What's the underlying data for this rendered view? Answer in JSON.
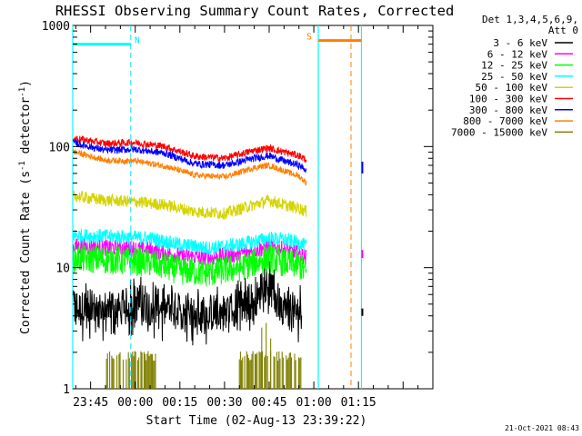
{
  "chart_data": {
    "type": "line",
    "title": "RHESSI Observing Summary Count Rates, Corrected",
    "xlabel": "Start Time (02-Aug-13 23:39:22)",
    "ylabel_main": "Corrected Count Rate (s",
    "ylabel_sup1": "-1",
    "ylabel_mid": " detector",
    "ylabel_sup2": "-1",
    "ylabel_end": ")",
    "y_scale": "log",
    "ylim": [
      1,
      1000
    ],
    "x_range_minutes": [
      -21,
      100
    ],
    "x_ticks": [
      {
        "label": "23:45",
        "minutes": -15
      },
      {
        "label": "00:00",
        "minutes": 0
      },
      {
        "label": "00:15",
        "minutes": 15
      },
      {
        "label": "00:30",
        "minutes": 30
      },
      {
        "label": "00:45",
        "minutes": 45
      },
      {
        "label": "01:00",
        "minutes": 60
      },
      {
        "label": "01:15",
        "minutes": 75
      }
    ],
    "y_ticks": [
      {
        "label": "1",
        "value": 1
      },
      {
        "label": "10",
        "value": 10
      },
      {
        "label": "100",
        "value": 100
      },
      {
        "label": "1000",
        "value": 1000
      }
    ],
    "legend_header": [
      "Det 1,3,4,5,6,9,",
      "Att 0"
    ],
    "legend_position": "right",
    "series": [
      {
        "name": "3 - 6 keV",
        "color": "#000000",
        "knots": [
          [
            -21,
            4.5
          ],
          [
            -5,
            4.5
          ],
          [
            0,
            5.2
          ],
          [
            10,
            4.5
          ],
          [
            20,
            4.2
          ],
          [
            30,
            4.3
          ],
          [
            40,
            5.5
          ],
          [
            44,
            7.5
          ],
          [
            48,
            5.2
          ],
          [
            52,
            4.3
          ],
          [
            56,
            4.5
          ]
        ],
        "noise": 0.16
      },
      {
        "name": "6 - 12 keV",
        "color": "#ff00ff",
        "knots": [
          [
            -21,
            15
          ],
          [
            -5,
            14.5
          ],
          [
            5,
            14
          ],
          [
            15,
            12.5
          ],
          [
            25,
            12
          ],
          [
            35,
            13
          ],
          [
            45,
            15
          ],
          [
            50,
            14
          ],
          [
            55,
            13
          ],
          [
            57.5,
            12
          ]
        ],
        "noise": 0.07
      },
      {
        "name": "12 - 25 keV",
        "color": "#00ff00",
        "knots": [
          [
            -21,
            12
          ],
          [
            -5,
            11.5
          ],
          [
            5,
            11
          ],
          [
            15,
            9.5
          ],
          [
            25,
            9
          ],
          [
            35,
            10
          ],
          [
            45,
            12
          ],
          [
            50,
            11
          ],
          [
            55,
            10.5
          ],
          [
            57.5,
            9
          ]
        ],
        "noise": 0.12
      },
      {
        "name": "25 - 50 keV",
        "color": "#00ffff",
        "knots": [
          [
            -21,
            18.5
          ],
          [
            -5,
            18
          ],
          [
            5,
            17.5
          ],
          [
            15,
            15.5
          ],
          [
            25,
            14.5
          ],
          [
            35,
            15.5
          ],
          [
            45,
            17.5
          ],
          [
            50,
            17
          ],
          [
            55,
            16
          ],
          [
            57.5,
            15
          ]
        ],
        "noise": 0.06
      },
      {
        "name": "50 - 100 keV",
        "color": "#d4d400",
        "knots": [
          [
            -21,
            39
          ],
          [
            -10,
            36
          ],
          [
            0,
            35
          ],
          [
            10,
            33
          ],
          [
            20,
            29
          ],
          [
            30,
            28
          ],
          [
            40,
            33
          ],
          [
            45,
            36
          ],
          [
            50,
            33
          ],
          [
            55,
            31
          ],
          [
            57.5,
            29
          ]
        ],
        "noise": 0.05
      },
      {
        "name": "100 - 300 keV",
        "color": "#ff0000",
        "knots": [
          [
            -21,
            118
          ],
          [
            -10,
            106
          ],
          [
            0,
            108
          ],
          [
            10,
            100
          ],
          [
            20,
            83
          ],
          [
            30,
            80
          ],
          [
            40,
            93
          ],
          [
            45,
            97
          ],
          [
            50,
            90
          ],
          [
            55,
            84
          ],
          [
            57.5,
            78
          ]
        ],
        "noise": 0.03
      },
      {
        "name": "300 - 800 keV",
        "color": "#0000ff",
        "knots": [
          [
            -21,
            108
          ],
          [
            -10,
            93
          ],
          [
            0,
            95
          ],
          [
            10,
            88
          ],
          [
            20,
            72
          ],
          [
            30,
            70
          ],
          [
            40,
            80
          ],
          [
            45,
            84
          ],
          [
            50,
            76
          ],
          [
            55,
            70
          ],
          [
            57.5,
            64
          ]
        ],
        "noise": 0.03
      },
      {
        "name": "800 - 7000 keV",
        "color": "#ff8000",
        "knots": [
          [
            -21,
            91
          ],
          [
            -10,
            77
          ],
          [
            0,
            76
          ],
          [
            10,
            69
          ],
          [
            20,
            58
          ],
          [
            30,
            56
          ],
          [
            40,
            67
          ],
          [
            45,
            70
          ],
          [
            50,
            63
          ],
          [
            55,
            57
          ],
          [
            57.5,
            50
          ]
        ],
        "noise": 0.025
      },
      {
        "name": "7000 - 15000 keV",
        "color": "#808000",
        "knots": [],
        "noise": 0
      }
    ],
    "markers": [
      {
        "label": "N",
        "color": "#00e5ff",
        "bar_from": -21,
        "bar_to": -1.5,
        "line_at": -1.5,
        "value": 700
      },
      {
        "label": "S",
        "color": "#ff8000",
        "bar_from": 61.5,
        "bar_to": 76,
        "line_at": 72.5,
        "value": 750
      }
    ],
    "gap_lines_minutes": [
      -21,
      61.5,
      76
    ],
    "lines": {
      "cyan": "#00ffff",
      "dashed_cyan": "#00e5ff",
      "dashed_orange": "#ff8000",
      "olive": "#808000"
    }
  },
  "footer": {
    "date": "21-Oct-2021 08:43"
  }
}
